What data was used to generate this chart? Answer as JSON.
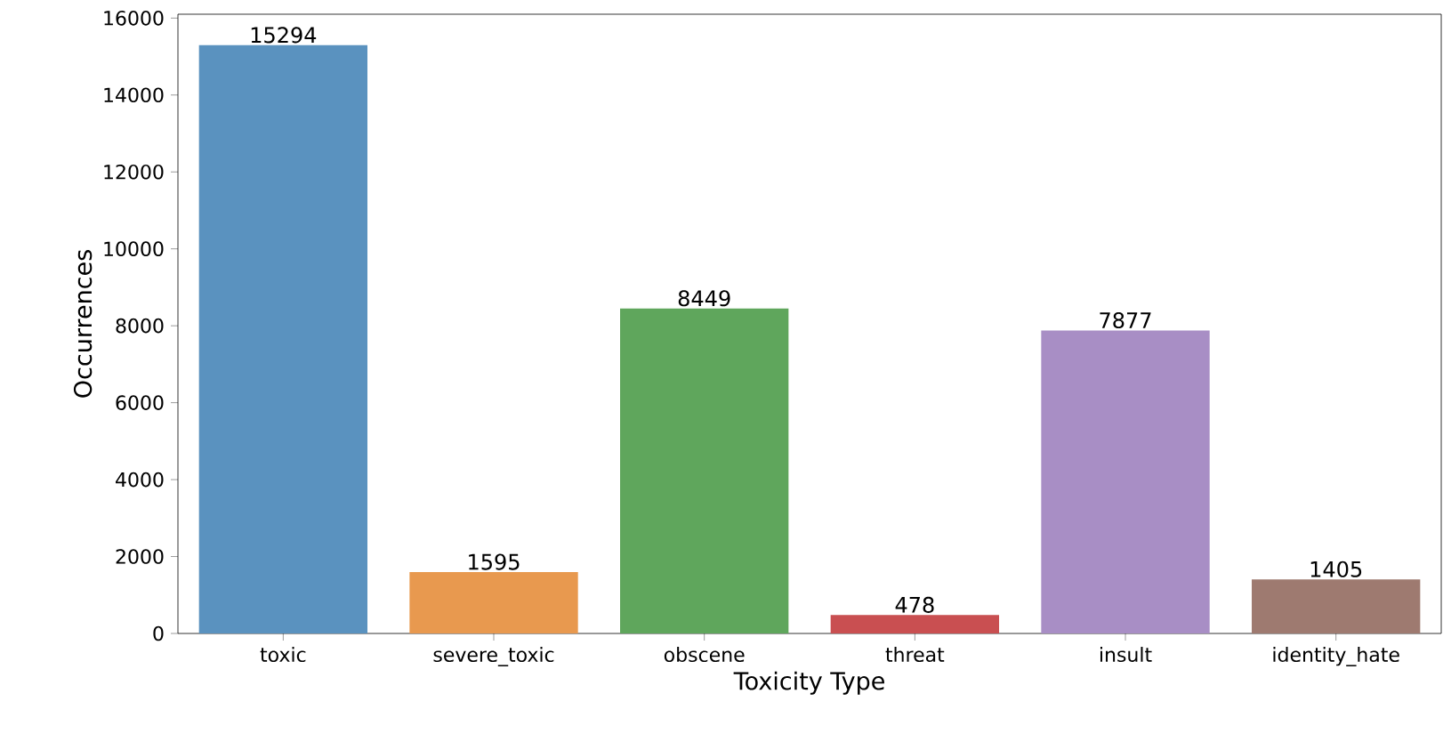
{
  "chart_data": {
    "type": "bar",
    "xlabel": "Toxicity Type",
    "ylabel": "Occurrences",
    "categories": [
      "toxic",
      "severe_toxic",
      "obscene",
      "threat",
      "insult",
      "identity_hate"
    ],
    "values": [
      15294,
      1595,
      8449,
      478,
      7877,
      1405
    ],
    "colors": [
      "#5a92bf",
      "#e8994f",
      "#5fa65c",
      "#c94f51",
      "#a88ec5",
      "#9e7a70"
    ],
    "ylim": [
      0,
      16100
    ],
    "yticks": [
      0,
      2000,
      4000,
      6000,
      8000,
      10000,
      12000,
      14000,
      16000
    ],
    "data_labels": true,
    "grid": false
  }
}
